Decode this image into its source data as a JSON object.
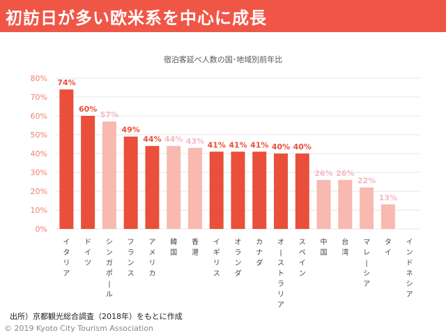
{
  "header": {
    "title": "初訪日が多い欧米系を中心に成長"
  },
  "chart_data": {
    "type": "bar",
    "title": "宿泊客延べ人数の国･地域別前年比",
    "xlabel": "",
    "ylabel": "",
    "ylim": [
      0,
      80
    ],
    "yticks": [
      "0%",
      "10%",
      "20%",
      "30%",
      "40%",
      "50%",
      "60%",
      "70%",
      "80%"
    ],
    "grid": true,
    "categories": [
      "イタリア",
      "ドイツ",
      "シンガポール",
      "フランス",
      "アメリカ",
      "韓国",
      "香港",
      "イギリス",
      "オランダ",
      "カナダ",
      "オーストラリア",
      "スペイン",
      "中国",
      "台湾",
      "マレーシア",
      "タイ",
      "インドネシア"
    ],
    "values": [
      74,
      60,
      57,
      49,
      44,
      44,
      43,
      41,
      41,
      41,
      40,
      40,
      26,
      26,
      22,
      13,
      null
    ],
    "data_labels": [
      "74%",
      "60%",
      "57%",
      "49%",
      "44%",
      "44%",
      "43%",
      "41%",
      "41%",
      "41%",
      "40%",
      "40%",
      "26%",
      "26%",
      "22%",
      "13%",
      ""
    ],
    "highlight": [
      true,
      true,
      false,
      true,
      true,
      false,
      false,
      true,
      true,
      true,
      true,
      true,
      false,
      false,
      false,
      false,
      false
    ],
    "colors": {
      "highlight": "#e94f3a",
      "normal": "#f7b9b0",
      "highlight_label": "#e94f3a",
      "normal_label": "#f2b9c2",
      "axis_label": "#f08070",
      "grid": "#e6e6e6"
    }
  },
  "footer": {
    "source": "出所）京都観光総合調査（2018年）をもとに作成",
    "copyright": "© 2019 Kyoto City Tourism Association"
  }
}
